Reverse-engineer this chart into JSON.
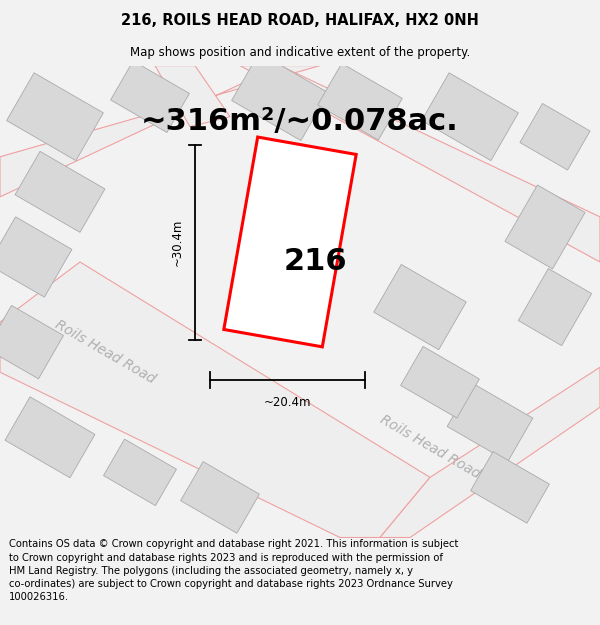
{
  "title": "216, ROILS HEAD ROAD, HALIFAX, HX2 0NH",
  "subtitle": "Map shows position and indicative extent of the property.",
  "area_text": "~316m²/~0.078ac.",
  "plot_number": "216",
  "dim_width": "~20.4m",
  "dim_height": "~30.4m",
  "road_label_1": "Roils Head Road",
  "road_label_2": "Roils Head Road",
  "copyright_text": "Contains OS data © Crown copyright and database right 2021. This information is subject to Crown copyright and database rights 2023 and is reproduced with the permission of HM Land Registry. The polygons (including the associated geometry, namely x, y co-ordinates) are subject to Crown copyright and database rights 2023 Ordnance Survey 100026316.",
  "bg_color": "#f2f2f2",
  "map_bg_color": "#ffffff",
  "plot_color": "#ff0000",
  "road_fill": "#eeeeee",
  "building_fill": "#d8d8d8",
  "road_line_color": "#f0a0a0",
  "title_fontsize": 10.5,
  "subtitle_fontsize": 8.5,
  "area_fontsize": 22,
  "plot_label_fontsize": 22,
  "copyright_fontsize": 7.2,
  "dim_fontsize": 8.5,
  "road_label_fontsize": 10
}
